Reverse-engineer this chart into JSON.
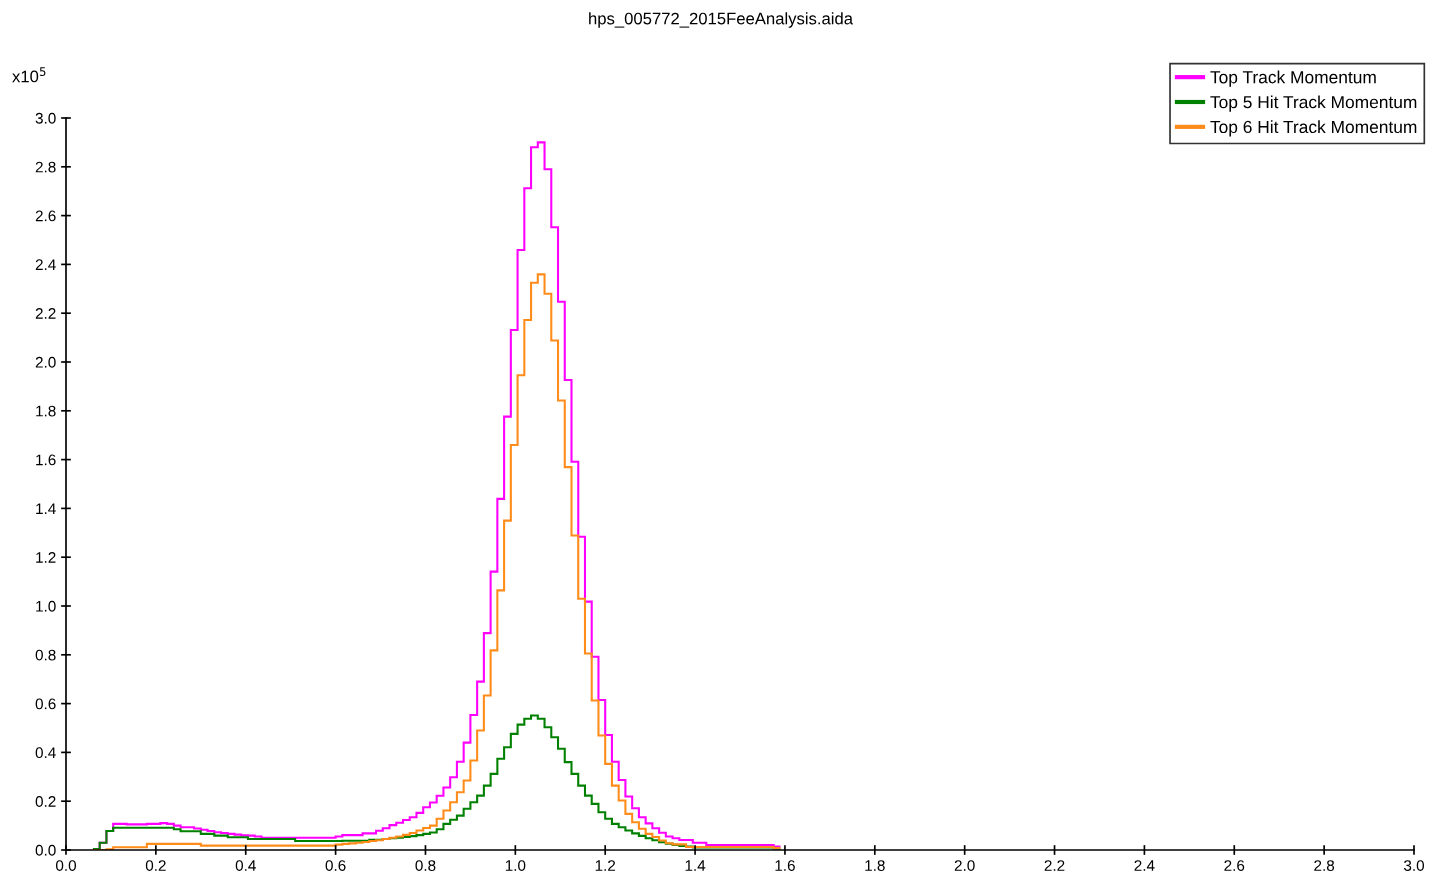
{
  "chart_data": {
    "type": "histogram",
    "title": "hps_005772_2015FeeAnalysis.aida",
    "ylabel": "x10$^{5}$",
    "bins": [
      0.06,
      0.075,
      0.09,
      0.105,
      0.12,
      0.135,
      0.15,
      0.165,
      0.18,
      0.195,
      0.21,
      0.225,
      0.24,
      0.255,
      0.27,
      0.285,
      0.3,
      0.315,
      0.33,
      0.345,
      0.36,
      0.375,
      0.39,
      0.405,
      0.42,
      0.435,
      0.45,
      0.465,
      0.48,
      0.495,
      0.51,
      0.525,
      0.54,
      0.555,
      0.57,
      0.585,
      0.6,
      0.615,
      0.63,
      0.645,
      0.66,
      0.675,
      0.69,
      0.705,
      0.72,
      0.735,
      0.75,
      0.765,
      0.78,
      0.795,
      0.81,
      0.825,
      0.84,
      0.855,
      0.87,
      0.885,
      0.9,
      0.915,
      0.93,
      0.945,
      0.96,
      0.975,
      0.99,
      1.005,
      1.02,
      1.035,
      1.05,
      1.065,
      1.08,
      1.095,
      1.11,
      1.125,
      1.14,
      1.155,
      1.17,
      1.185,
      1.2,
      1.215,
      1.23,
      1.245,
      1.26,
      1.275,
      1.29,
      1.305,
      1.32,
      1.335,
      1.35,
      1.365,
      1.38,
      1.395,
      1.41,
      1.425,
      1.44,
      1.455,
      1.47,
      1.485,
      1.5,
      1.515,
      1.53,
      1.545,
      1.56,
      1.575,
      1.59
    ],
    "series": [
      {
        "name": "Top Track Momentum",
        "color": "#ff00ff",
        "values": [
          0.004,
          0.03,
          0.078,
          0.107,
          0.107,
          0.105,
          0.105,
          0.105,
          0.107,
          0.107,
          0.11,
          0.107,
          0.1,
          0.093,
          0.093,
          0.088,
          0.083,
          0.078,
          0.073,
          0.07,
          0.066,
          0.063,
          0.06,
          0.059,
          0.055,
          0.05,
          0.05,
          0.05,
          0.05,
          0.05,
          0.05,
          0.05,
          0.05,
          0.05,
          0.05,
          0.05,
          0.055,
          0.061,
          0.061,
          0.061,
          0.068,
          0.068,
          0.079,
          0.089,
          0.102,
          0.112,
          0.123,
          0.134,
          0.152,
          0.175,
          0.195,
          0.222,
          0.256,
          0.298,
          0.362,
          0.44,
          0.553,
          0.69,
          0.889,
          1.141,
          1.439,
          1.776,
          2.131,
          2.459,
          2.712,
          2.88,
          2.9,
          2.79,
          2.552,
          2.247,
          1.926,
          1.591,
          1.284,
          1.018,
          0.792,
          0.615,
          0.471,
          0.362,
          0.287,
          0.219,
          0.171,
          0.134,
          0.109,
          0.089,
          0.071,
          0.055,
          0.048,
          0.041,
          0.041,
          0.03,
          0.03,
          0.02,
          0.02,
          0.02,
          0.02,
          0.02,
          0.02,
          0.02,
          0.02,
          0.02,
          0.02,
          0.014
        ]
      },
      {
        "name": "Top 5 Hit Track Momentum",
        "color": "#008000",
        "values": [
          0.004,
          0.03,
          0.078,
          0.091,
          0.091,
          0.091,
          0.091,
          0.091,
          0.091,
          0.091,
          0.091,
          0.091,
          0.085,
          0.077,
          0.077,
          0.077,
          0.066,
          0.066,
          0.059,
          0.059,
          0.052,
          0.052,
          0.052,
          0.045,
          0.045,
          0.045,
          0.045,
          0.045,
          0.045,
          0.045,
          0.037,
          0.037,
          0.037,
          0.037,
          0.037,
          0.037,
          0.037,
          0.038,
          0.038,
          0.038,
          0.038,
          0.042,
          0.042,
          0.045,
          0.048,
          0.05,
          0.053,
          0.057,
          0.061,
          0.066,
          0.072,
          0.085,
          0.107,
          0.124,
          0.141,
          0.169,
          0.196,
          0.223,
          0.264,
          0.312,
          0.374,
          0.421,
          0.476,
          0.514,
          0.538,
          0.551,
          0.538,
          0.503,
          0.462,
          0.415,
          0.36,
          0.312,
          0.264,
          0.223,
          0.189,
          0.155,
          0.128,
          0.107,
          0.093,
          0.08,
          0.068,
          0.058,
          0.048,
          0.04,
          0.032,
          0.026,
          0.021,
          0.017,
          0.014,
          0.01,
          0.01,
          0.01,
          0.01,
          0.01,
          0.01,
          0.01,
          0.01,
          0.01,
          0.01,
          0.01,
          0.01,
          0.006
        ]
      },
      {
        "name": "Top 6 Hit Track Momentum",
        "color": "#ff8c1a",
        "values": [
          0,
          0,
          0.003,
          0.011,
          0.011,
          0.011,
          0.011,
          0.011,
          0.025,
          0.025,
          0.025,
          0.025,
          0.025,
          0.025,
          0.025,
          0.025,
          0.018,
          0.018,
          0.018,
          0.018,
          0.018,
          0.018,
          0.018,
          0.018,
          0.018,
          0.018,
          0.018,
          0.018,
          0.018,
          0.018,
          0.018,
          0.018,
          0.018,
          0.018,
          0.018,
          0.018,
          0.022,
          0.025,
          0.027,
          0.03,
          0.033,
          0.037,
          0.04,
          0.045,
          0.05,
          0.055,
          0.062,
          0.07,
          0.08,
          0.09,
          0.1,
          0.128,
          0.162,
          0.196,
          0.237,
          0.285,
          0.367,
          0.49,
          0.633,
          0.818,
          1.064,
          1.35,
          1.66,
          1.946,
          2.172,
          2.325,
          2.359,
          2.28,
          2.088,
          1.842,
          1.569,
          1.289,
          1.03,
          0.805,
          0.613,
          0.469,
          0.353,
          0.264,
          0.203,
          0.148,
          0.114,
          0.087,
          0.066,
          0.053,
          0.039,
          0.028,
          0.023,
          0.023,
          0.012,
          0.012,
          0.012,
          0.012,
          0.012,
          0.012,
          0.012,
          0.012,
          0.012,
          0.012,
          0.012,
          0.012,
          0.012,
          0.008
        ]
      }
    ],
    "xlim": [
      0,
      3.0
    ],
    "ylim": [
      0,
      3.0
    ],
    "xticks": [
      {
        "value": 0,
        "label": "0.0"
      },
      {
        "value": 0.2,
        "label": "0.2"
      },
      {
        "value": 0.4,
        "label": "0.4"
      },
      {
        "value": 0.6,
        "label": "0.6"
      },
      {
        "value": 0.8,
        "label": "0.8"
      },
      {
        "value": 1.0,
        "label": "1.0"
      },
      {
        "value": 1.2,
        "label": "1.2"
      },
      {
        "value": 1.4,
        "label": "1.4"
      },
      {
        "value": 1.6,
        "label": "1.6"
      },
      {
        "value": 1.8,
        "label": "1.8"
      },
      {
        "value": 2.0,
        "label": "2.0"
      },
      {
        "value": 2.2,
        "label": "2.2"
      },
      {
        "value": 2.4,
        "label": "2.4"
      },
      {
        "value": 2.6,
        "label": "2.6"
      },
      {
        "value": 2.8,
        "label": "2.8"
      },
      {
        "value": 3.0,
        "label": "3.0"
      }
    ],
    "yticks": [
      {
        "value": 0,
        "label": "0.0"
      },
      {
        "value": 0.2,
        "label": "0.2"
      },
      {
        "value": 0.4,
        "label": "0.4"
      },
      {
        "value": 0.6,
        "label": "0.6"
      },
      {
        "value": 0.8,
        "label": "0.8"
      },
      {
        "value": 1.0,
        "label": "1.0"
      },
      {
        "value": 1.2,
        "label": "1.2"
      },
      {
        "value": 1.4,
        "label": "1.4"
      },
      {
        "value": 1.6,
        "label": "1.6"
      },
      {
        "value": 1.8,
        "label": "1.8"
      },
      {
        "value": 2.0,
        "label": "2.0"
      },
      {
        "value": 2.2,
        "label": "2.2"
      },
      {
        "value": 2.4,
        "label": "2.4"
      },
      {
        "value": 2.6,
        "label": "2.6"
      },
      {
        "value": 2.8,
        "label": "2.8"
      },
      {
        "value": 3.0,
        "label": "3.0"
      }
    ],
    "grid": false,
    "legend": "top right"
  }
}
